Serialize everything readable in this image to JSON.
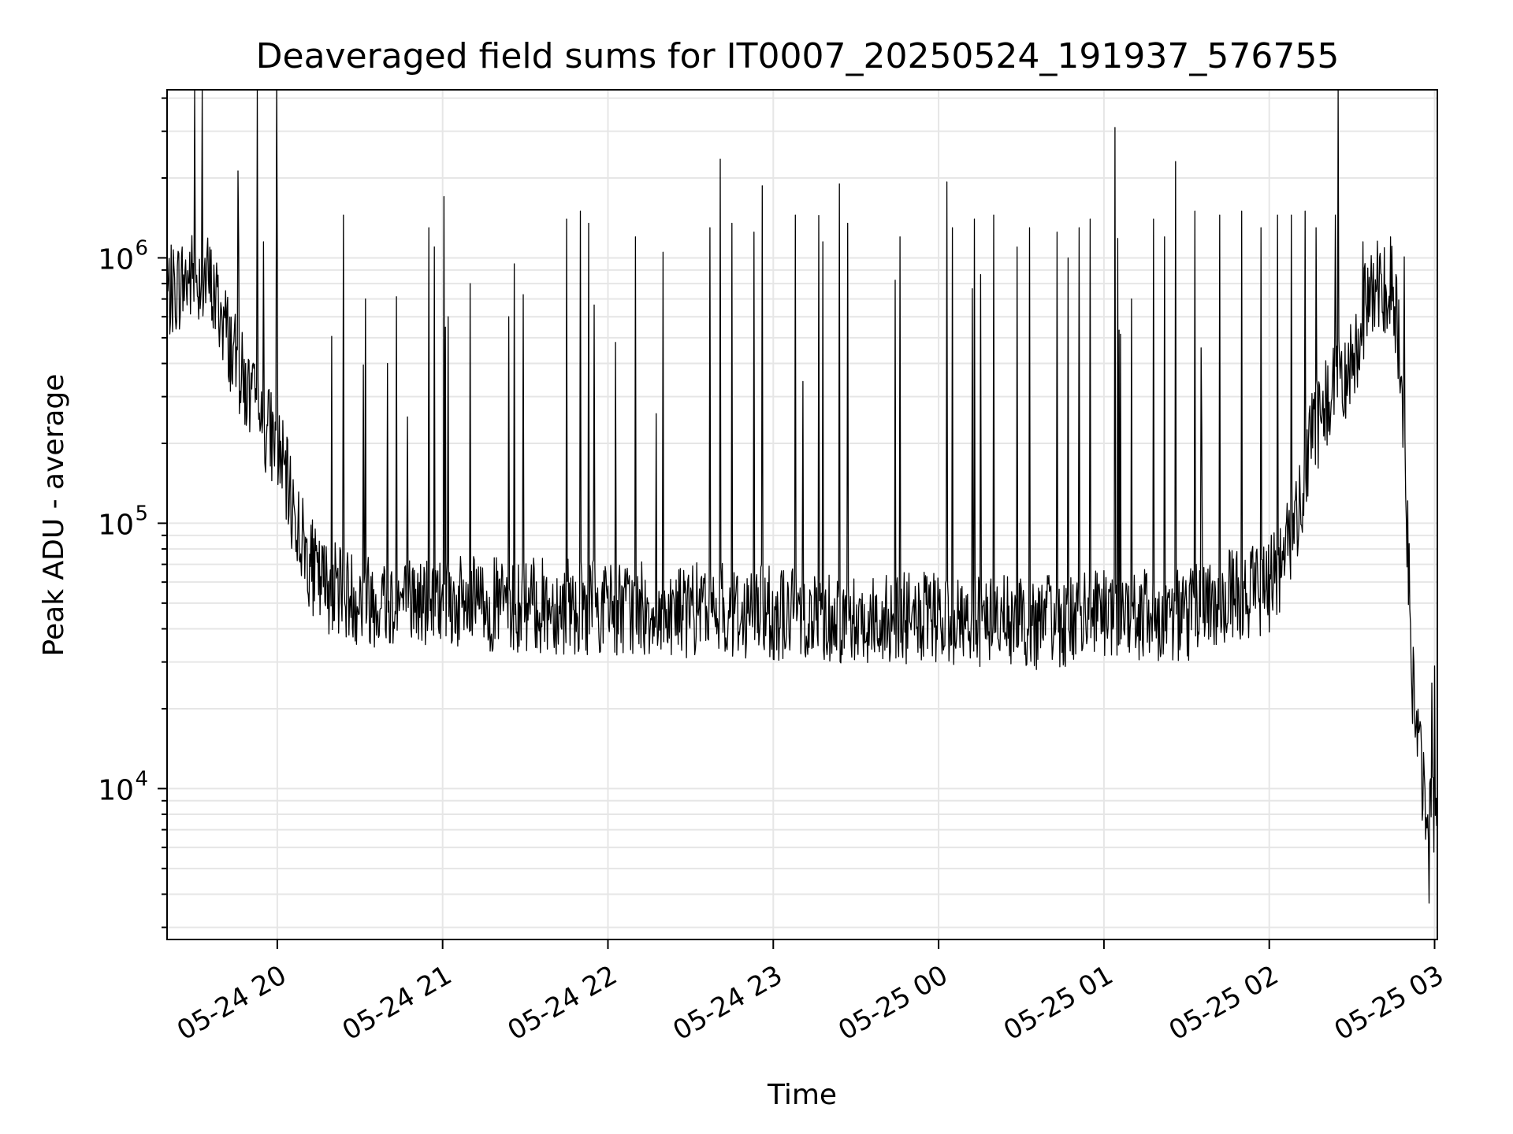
{
  "chart_data": {
    "type": "line",
    "title": "Deaveraged field sums for IT0007_20250524_191937_576755",
    "xlabel": "Time",
    "ylabel": "Peak ADU - average",
    "yscale": "log",
    "ylim": [
      2700,
      4300000
    ],
    "xlim": [
      "2025-05-24 19:20",
      "2025-05-25 03:01"
    ],
    "grid": true,
    "legend": "none",
    "line_color": "#000000",
    "x_ticks": [
      {
        "value": "2025-05-24 20:00",
        "label": "05-24 20"
      },
      {
        "value": "2025-05-24 21:00",
        "label": "05-24 21"
      },
      {
        "value": "2025-05-24 22:00",
        "label": "05-24 22"
      },
      {
        "value": "2025-05-24 23:00",
        "label": "05-24 23"
      },
      {
        "value": "2025-05-25 00:00",
        "label": "05-25 00"
      },
      {
        "value": "2025-05-25 01:00",
        "label": "05-25 01"
      },
      {
        "value": "2025-05-25 02:00",
        "label": "05-25 02"
      },
      {
        "value": "2025-05-25 03:00",
        "label": "05-25 03"
      }
    ],
    "y_ticks": [
      {
        "value": 10000,
        "base": "10",
        "exp": "4"
      },
      {
        "value": 100000,
        "base": "10",
        "exp": "5"
      },
      {
        "value": 1000000,
        "base": "10",
        "exp": "6"
      }
    ],
    "series": [
      {
        "baseline": [
          [
            "2025-05-24 19:20",
            720000
          ],
          [
            "2025-05-24 19:25",
            800000
          ],
          [
            "2025-05-24 19:30",
            860000
          ],
          [
            "2025-05-24 19:35",
            820000
          ],
          [
            "2025-05-24 19:40",
            600000
          ],
          [
            "2025-05-24 19:45",
            400000
          ],
          [
            "2025-05-24 19:50",
            300000
          ],
          [
            "2025-05-24 19:55",
            240000
          ],
          [
            "2025-05-24 20:00",
            200000
          ],
          [
            "2025-05-24 20:05",
            120000
          ],
          [
            "2025-05-24 20:10",
            80000
          ],
          [
            "2025-05-24 20:15",
            60000
          ],
          [
            "2025-05-24 20:30",
            52000
          ],
          [
            "2025-05-24 21:00",
            50000
          ],
          [
            "2025-05-24 22:00",
            48000
          ],
          [
            "2025-05-24 23:00",
            46000
          ],
          [
            "2025-05-24 23:30",
            44000
          ],
          [
            "2025-05-25 00:00",
            43000
          ],
          [
            "2025-05-25 00:30",
            42000
          ],
          [
            "2025-05-25 01:00",
            44000
          ],
          [
            "2025-05-25 01:30",
            45000
          ],
          [
            "2025-05-25 01:50",
            55000
          ],
          [
            "2025-05-25 02:00",
            58000
          ],
          [
            "2025-05-25 02:05",
            70000
          ],
          [
            "2025-05-25 02:10",
            110000
          ],
          [
            "2025-05-25 02:15",
            200000
          ],
          [
            "2025-05-25 02:20",
            280000
          ],
          [
            "2025-05-25 02:25",
            330000
          ],
          [
            "2025-05-25 02:30",
            400000
          ],
          [
            "2025-05-25 02:35",
            650000
          ],
          [
            "2025-05-25 02:40",
            800000
          ],
          [
            "2025-05-25 02:45",
            750000
          ],
          [
            "2025-05-25 02:48",
            400000
          ],
          [
            "2025-05-25 02:52",
            25000
          ],
          [
            "2025-05-25 02:55",
            12000
          ],
          [
            "2025-05-25 02:57",
            8000
          ],
          [
            "2025-05-25 03:01",
            9000
          ]
        ],
        "spikes": [
          [
            "2025-05-24 19:46",
            1100000
          ],
          [
            "2025-05-24 19:55",
            1150000
          ],
          [
            "2025-05-24 20:00",
            1000000
          ],
          [
            "2025-05-24 20:24",
            1450000
          ],
          [
            "2025-05-24 20:32",
            700000
          ],
          [
            "2025-05-24 20:40",
            400000
          ],
          [
            "2025-05-24 20:55",
            1300000
          ],
          [
            "2025-05-24 20:57",
            1100000
          ],
          [
            "2025-05-24 21:02",
            600000
          ],
          [
            "2025-05-24 21:10",
            800000
          ],
          [
            "2025-05-24 21:24",
            600000
          ],
          [
            "2025-05-24 21:26",
            950000
          ],
          [
            "2025-05-24 21:45",
            1400000
          ],
          [
            "2025-05-24 21:50",
            1500000
          ],
          [
            "2025-05-24 21:53",
            1350000
          ],
          [
            "2025-05-24 22:10",
            1200000
          ],
          [
            "2025-05-24 22:20",
            1050000
          ],
          [
            "2025-05-24 22:37",
            1300000
          ],
          [
            "2025-05-24 22:45",
            1350000
          ],
          [
            "2025-05-24 22:53",
            1250000
          ],
          [
            "2025-05-24 23:08",
            1450000
          ],
          [
            "2025-05-24 23:18",
            1150000
          ],
          [
            "2025-05-24 23:27",
            1350000
          ],
          [
            "2025-05-24 23:46",
            1200000
          ],
          [
            "2025-05-25 00:05",
            1300000
          ],
          [
            "2025-05-25 00:13",
            1400000
          ],
          [
            "2025-05-25 00:20",
            1450000
          ],
          [
            "2025-05-25 00:33",
            1300000
          ],
          [
            "2025-05-25 00:43",
            1250000
          ],
          [
            "2025-05-25 00:47",
            1000000
          ],
          [
            "2025-05-25 00:51",
            1300000
          ],
          [
            "2025-05-25 00:55",
            1400000
          ],
          [
            "2025-05-25 01:04",
            3100000
          ],
          [
            "2025-05-25 01:10",
            700000
          ],
          [
            "2025-05-25 01:18",
            1400000
          ],
          [
            "2025-05-25 01:22",
            1200000
          ],
          [
            "2025-05-25 01:33",
            1500000
          ],
          [
            "2025-05-25 01:42",
            1450000
          ],
          [
            "2025-05-25 01:50",
            1500000
          ],
          [
            "2025-05-25 01:57",
            1300000
          ],
          [
            "2025-05-25 02:03",
            1450000
          ],
          [
            "2025-05-25 02:08",
            1450000
          ],
          [
            "2025-05-25 02:13",
            1500000
          ],
          [
            "2025-05-25 02:17",
            1300000
          ],
          [
            "2025-05-25 02:24",
            1450000
          ],
          [
            "2025-05-25 02:34",
            1150000
          ],
          [
            "2025-05-25 02:40",
            1000000
          ],
          [
            "2025-05-25 02:44",
            1200000
          ],
          [
            "2025-05-25 02:58",
            3700
          ],
          [
            "2025-05-25 02:59",
            25000
          ],
          [
            "2025-05-25 03:00",
            29000
          ]
        ]
      }
    ]
  }
}
